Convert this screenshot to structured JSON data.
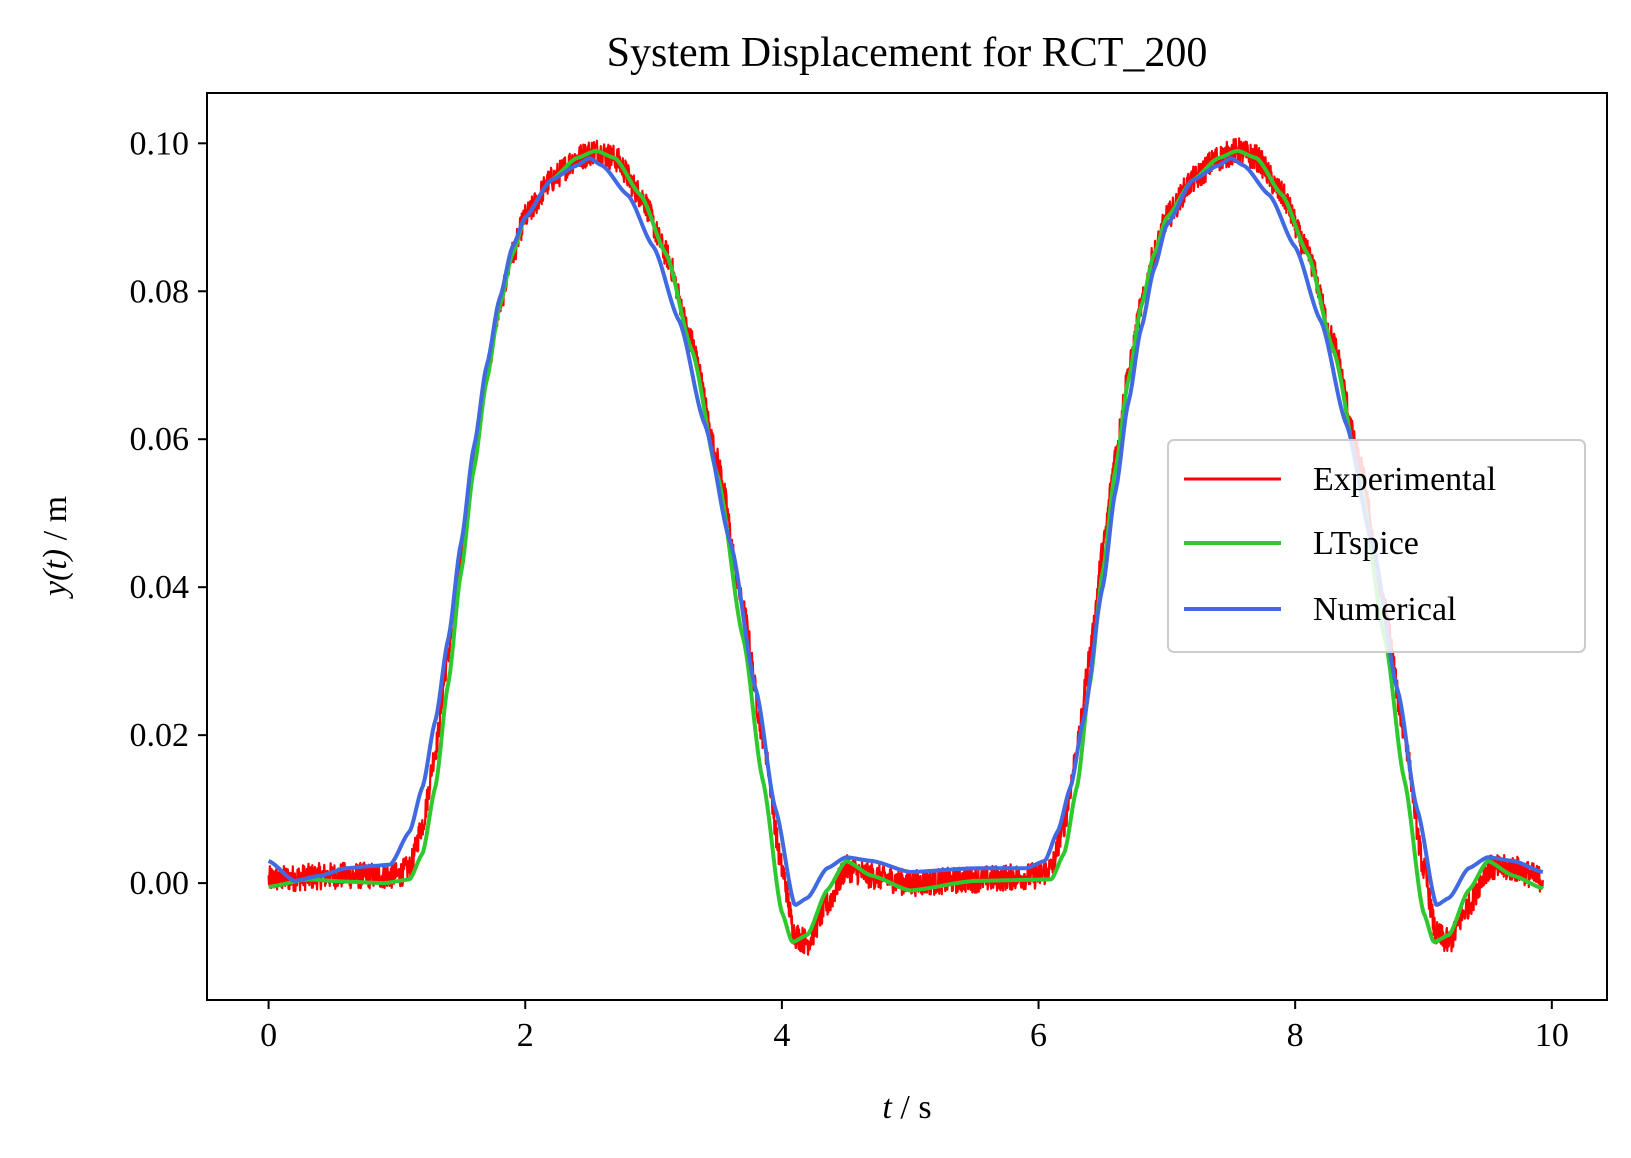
{
  "chart_data": {
    "type": "line",
    "title": "System Displacement for RCT_200",
    "xlabel": "t / s",
    "xlabel_var": "t",
    "xlabel_unit": " / s",
    "ylabel": "y(t) / m",
    "ylabel_var": "y(t)",
    "ylabel_unit": " / m",
    "xlim": [
      -0.48,
      10.43
    ],
    "ylim": [
      -0.0158,
      0.1068
    ],
    "xticks": [
      0,
      2,
      4,
      6,
      8,
      10
    ],
    "xtick_labels": [
      "0",
      "2",
      "4",
      "6",
      "8",
      "10"
    ],
    "yticks": [
      0.0,
      0.02,
      0.04,
      0.06,
      0.08,
      0.1
    ],
    "ytick_labels": [
      "0.00",
      "0.02",
      "0.04",
      "0.06",
      "0.08",
      "0.10"
    ],
    "grid": false,
    "legend_position": "center-right",
    "series": [
      {
        "name": "Experimental",
        "color": "#ff0000",
        "noise_amplitude": 0.0018,
        "x": [
          0.0,
          0.5,
          1.0,
          1.1,
          1.2,
          1.3,
          1.4,
          1.5,
          1.6,
          1.7,
          1.8,
          1.9,
          2.0,
          2.2,
          2.4,
          2.55,
          2.7,
          2.9,
          3.1,
          3.3,
          3.5,
          3.7,
          3.85,
          4.0,
          4.1,
          4.2,
          4.35,
          4.5,
          4.7,
          5.0,
          5.5,
          6.0,
          6.1,
          6.2,
          6.3,
          6.4,
          6.5,
          6.6,
          6.7,
          6.8,
          6.9,
          7.0,
          7.2,
          7.4,
          7.55,
          7.7,
          7.9,
          8.1,
          8.3,
          8.5,
          8.7,
          8.85,
          9.0,
          9.1,
          9.2,
          9.35,
          9.5,
          9.7,
          9.93
        ],
        "y": [
          0.0005,
          0.001,
          0.001,
          0.002,
          0.008,
          0.018,
          0.031,
          0.045,
          0.058,
          0.069,
          0.078,
          0.085,
          0.09,
          0.095,
          0.098,
          0.099,
          0.098,
          0.093,
          0.085,
          0.073,
          0.057,
          0.037,
          0.02,
          0.002,
          -0.007,
          -0.008,
          -0.003,
          0.002,
          0.001,
          0.0,
          0.0005,
          0.001,
          0.002,
          0.008,
          0.018,
          0.031,
          0.045,
          0.058,
          0.069,
          0.078,
          0.085,
          0.09,
          0.095,
          0.098,
          0.099,
          0.098,
          0.093,
          0.085,
          0.073,
          0.057,
          0.037,
          0.02,
          0.002,
          -0.007,
          -0.008,
          -0.003,
          0.002,
          0.002,
          0.0005
        ]
      },
      {
        "name": "LTspice",
        "color": "#2fc92f",
        "x": [
          0.0,
          0.3,
          0.6,
          0.9,
          1.1,
          1.2,
          1.3,
          1.4,
          1.5,
          1.6,
          1.7,
          1.8,
          1.9,
          2.0,
          2.2,
          2.4,
          2.55,
          2.7,
          2.9,
          3.1,
          3.3,
          3.5,
          3.7,
          3.85,
          4.0,
          4.08,
          4.2,
          4.35,
          4.5,
          4.7,
          5.0,
          5.5,
          6.1,
          6.2,
          6.3,
          6.4,
          6.5,
          6.6,
          6.7,
          6.8,
          6.9,
          7.0,
          7.2,
          7.4,
          7.55,
          7.7,
          7.9,
          8.1,
          8.3,
          8.5,
          8.7,
          8.85,
          9.0,
          9.08,
          9.2,
          9.35,
          9.5,
          9.7,
          9.93
        ],
        "y": [
          -0.0005,
          0.0005,
          0.0002,
          0.0,
          0.0005,
          0.004,
          0.013,
          0.027,
          0.042,
          0.056,
          0.068,
          0.078,
          0.085,
          0.09,
          0.095,
          0.098,
          0.099,
          0.098,
          0.093,
          0.085,
          0.072,
          0.055,
          0.033,
          0.014,
          -0.004,
          -0.008,
          -0.007,
          -0.001,
          0.003,
          0.001,
          -0.001,
          0.0003,
          0.0005,
          0.004,
          0.013,
          0.027,
          0.042,
          0.056,
          0.068,
          0.078,
          0.085,
          0.09,
          0.095,
          0.098,
          0.099,
          0.098,
          0.093,
          0.085,
          0.072,
          0.055,
          0.033,
          0.014,
          -0.004,
          -0.008,
          -0.007,
          -0.001,
          0.003,
          0.001,
          -0.0007
        ]
      },
      {
        "name": "Numerical",
        "color": "#4169e1",
        "x": [
          0.0,
          0.2,
          0.4,
          0.6,
          0.8,
          0.95,
          1.1,
          1.2,
          1.3,
          1.4,
          1.5,
          1.6,
          1.7,
          1.8,
          1.9,
          2.0,
          2.2,
          2.4,
          2.5,
          2.6,
          2.8,
          3.0,
          3.2,
          3.4,
          3.6,
          3.8,
          3.95,
          4.1,
          4.2,
          4.35,
          4.5,
          4.7,
          5.0,
          5.5,
          5.9,
          6.05,
          6.15,
          6.25,
          6.35,
          6.5,
          6.6,
          6.7,
          6.8,
          6.9,
          7.0,
          7.2,
          7.4,
          7.5,
          7.6,
          7.8,
          8.0,
          8.2,
          8.4,
          8.6,
          8.8,
          8.95,
          9.1,
          9.2,
          9.35,
          9.5,
          9.7,
          9.93
        ],
        "y": [
          0.003,
          0.0003,
          0.001,
          0.002,
          0.0023,
          0.0025,
          0.007,
          0.013,
          0.022,
          0.033,
          0.046,
          0.059,
          0.07,
          0.079,
          0.086,
          0.09,
          0.095,
          0.097,
          0.098,
          0.097,
          0.093,
          0.086,
          0.076,
          0.062,
          0.046,
          0.026,
          0.01,
          -0.003,
          -0.002,
          0.002,
          0.0035,
          0.003,
          0.0015,
          0.002,
          0.002,
          0.003,
          0.007,
          0.013,
          0.022,
          0.04,
          0.053,
          0.065,
          0.075,
          0.083,
          0.089,
          0.095,
          0.097,
          0.098,
          0.097,
          0.093,
          0.086,
          0.076,
          0.062,
          0.046,
          0.026,
          0.01,
          -0.003,
          -0.002,
          0.002,
          0.0035,
          0.003,
          0.0015
        ]
      }
    ]
  }
}
